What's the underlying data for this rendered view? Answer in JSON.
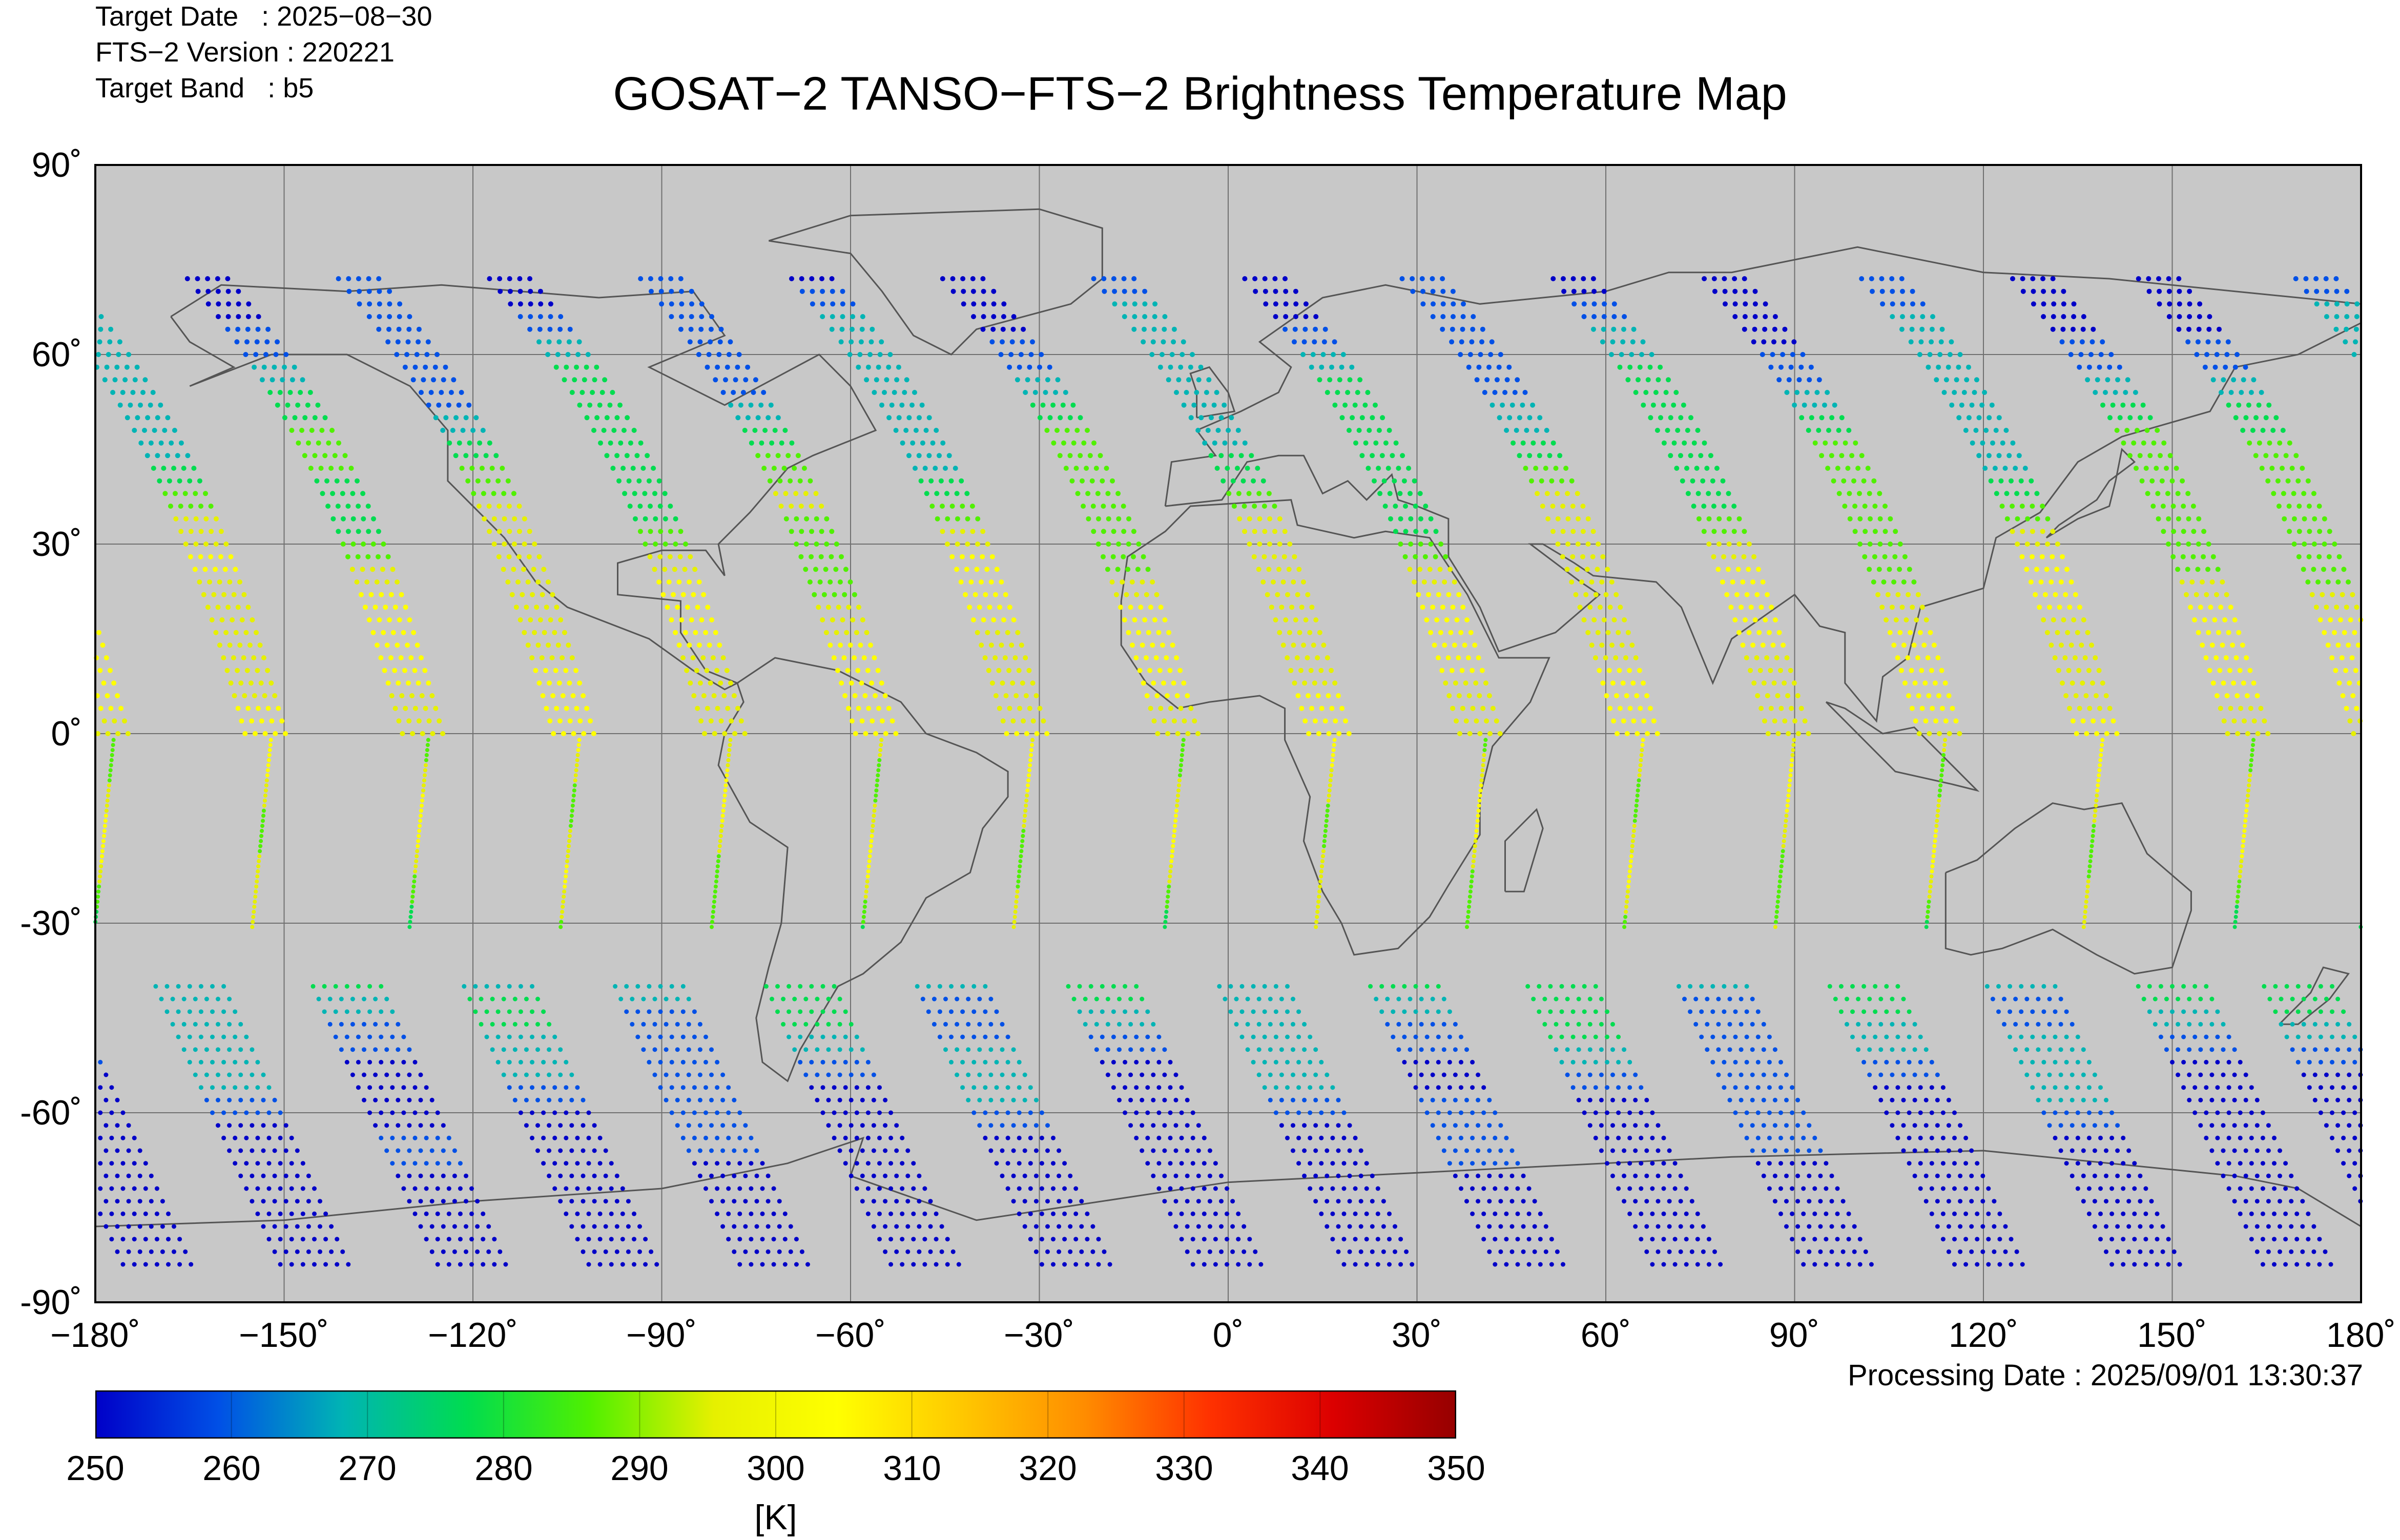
{
  "header": {
    "target_date": "Target Date   : 2025−08−30",
    "version": "FTS−2 Version : 220221",
    "band": "Target Band   : b5",
    "title": "GOSAT−2 TANSO−FTS−2 Brightness Temperature Map"
  },
  "map": {
    "background_color": "#c8c8c8",
    "grid_color": "#707070",
    "coast_color": "#555555",
    "lon_range": [
      -180,
      180
    ],
    "lat_range": [
      -90,
      90
    ],
    "lat_ticks": [
      {
        "value": 90,
        "label": "90˚"
      },
      {
        "value": 60,
        "label": "60˚"
      },
      {
        "value": 30,
        "label": "30˚"
      },
      {
        "value": 0,
        "label": "0˚"
      },
      {
        "value": -30,
        "label": "-30˚"
      },
      {
        "value": -60,
        "label": "-60˚"
      },
      {
        "value": -90,
        "label": "-90˚"
      }
    ],
    "lon_ticks": [
      {
        "value": -180,
        "label": "−180˚"
      },
      {
        "value": -150,
        "label": "−150˚"
      },
      {
        "value": -120,
        "label": "−120˚"
      },
      {
        "value": -90,
        "label": "−90˚"
      },
      {
        "value": -60,
        "label": "−60˚"
      },
      {
        "value": -30,
        "label": "−30˚"
      },
      {
        "value": 0,
        "label": "0˚"
      },
      {
        "value": 30,
        "label": "30˚"
      },
      {
        "value": 60,
        "label": "60˚"
      },
      {
        "value": 90,
        "label": "90˚"
      },
      {
        "value": 120,
        "label": "120˚"
      },
      {
        "value": 150,
        "label": "150˚"
      },
      {
        "value": 180,
        "label": "180˚"
      }
    ],
    "orbit_tracks": {
      "equator_crossing_lons": [
        -178,
        -153,
        -128,
        -104,
        -80,
        -56,
        -32,
        -8,
        16,
        40,
        65,
        89,
        113,
        138,
        162
      ],
      "north_band_end_lat": 72,
      "south_band_start_lat": -40,
      "south_line_end_lat": -31
    }
  },
  "processing_date": "Processing Date : 2025/09/01 13:30:37",
  "colorbar": {
    "min": 250,
    "max": 350,
    "labels": [
      "250",
      "260",
      "270",
      "280",
      "290",
      "300",
      "310",
      "320",
      "330",
      "340",
      "350"
    ],
    "unit": "[K]",
    "colors": [
      "#0000c8",
      "#0050e6",
      "#00b4b4",
      "#00dc50",
      "#50f000",
      "#e6f000",
      "#ffff00",
      "#ffc800",
      "#ff8c00",
      "#ff3200",
      "#dc0000",
      "#960000"
    ]
  }
}
